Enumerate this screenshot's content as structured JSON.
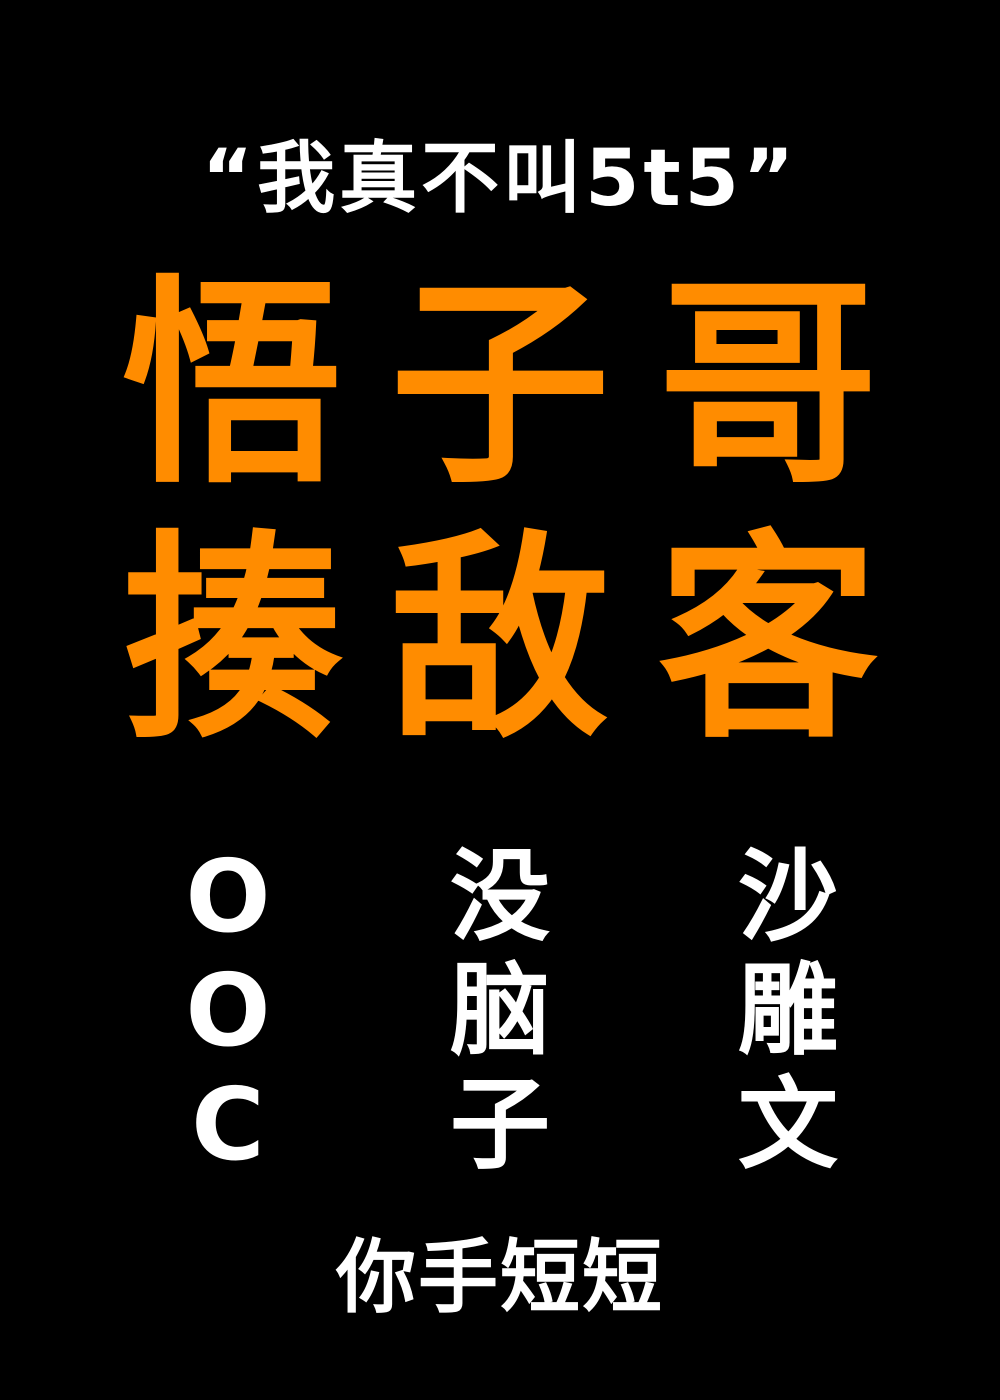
{
  "cover": {
    "subtitle": "“我真不叫5t5”",
    "title_line1": [
      "悟",
      "子",
      "哥"
    ],
    "title_line2": [
      "揍",
      "敌",
      "客"
    ],
    "tag_columns": [
      [
        "O",
        "O",
        "C"
      ],
      [
        "没",
        "脑",
        "子"
      ],
      [
        "沙",
        "雕",
        "文"
      ]
    ],
    "author": "你手短短"
  },
  "colors": {
    "background": "#000000",
    "title": "#ff8c00",
    "text": "#ffffff"
  }
}
